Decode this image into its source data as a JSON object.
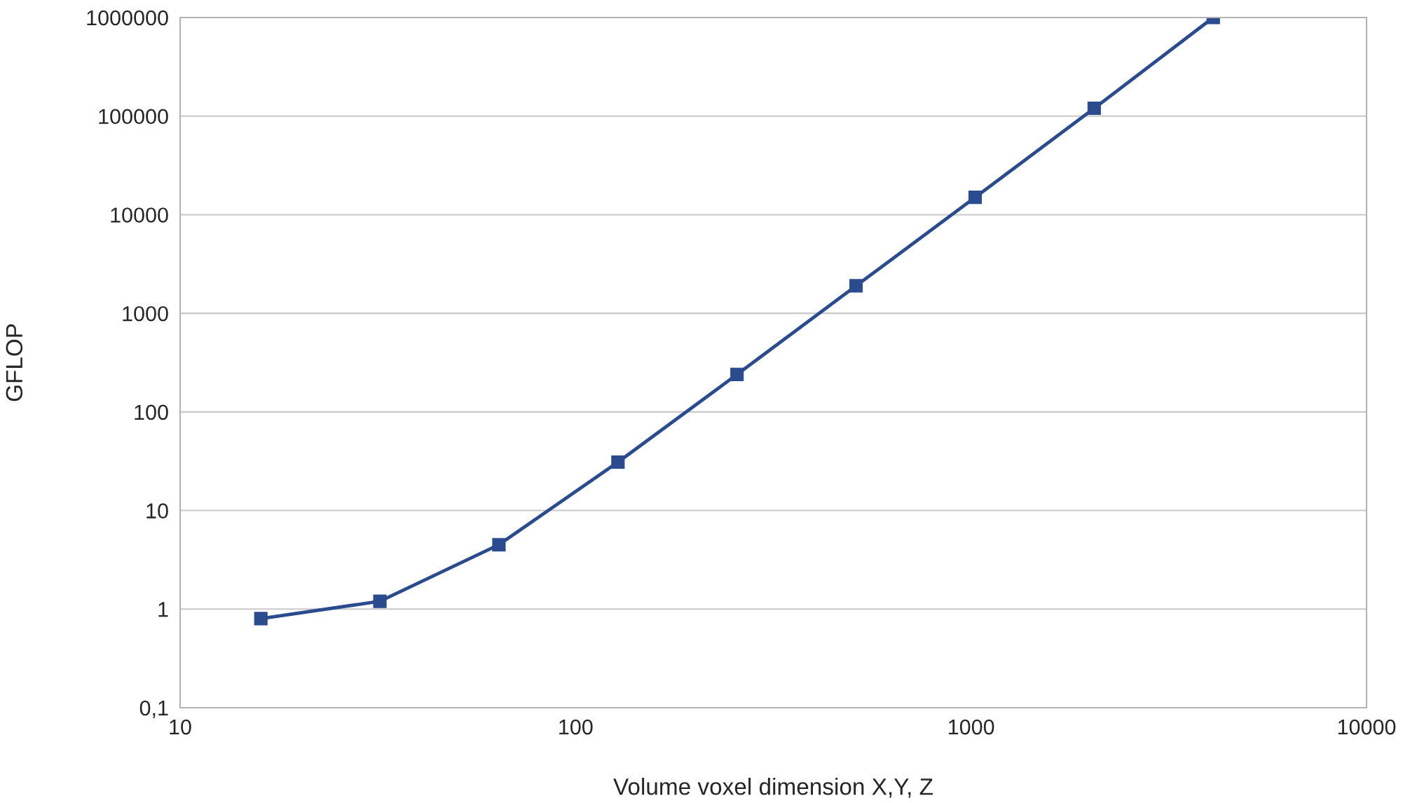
{
  "chart_data": {
    "type": "line",
    "xlabel": "Volume voxel dimension X,Y, Z",
    "ylabel": "GFLOP",
    "x": [
      16,
      32,
      64,
      128,
      256,
      512,
      1024,
      2048,
      4096
    ],
    "series": [
      {
        "color": "#2a4b8d",
        "values": [
          0.8,
          1.2,
          4.5,
          31,
          240,
          1900,
          15000,
          120000,
          1000000
        ]
      }
    ],
    "log": "xy",
    "xlim": [
      10,
      10000
    ],
    "ylim": [
      0.1,
      1000000
    ],
    "xticks": [
      10,
      100,
      1000,
      10000
    ],
    "yticks": [
      {
        "value": 0.1,
        "label": "0,1"
      },
      1,
      10,
      100,
      1000,
      10000,
      100000,
      1000000
    ],
    "grid": "y",
    "marker": "square",
    "line_style": "solid"
  }
}
